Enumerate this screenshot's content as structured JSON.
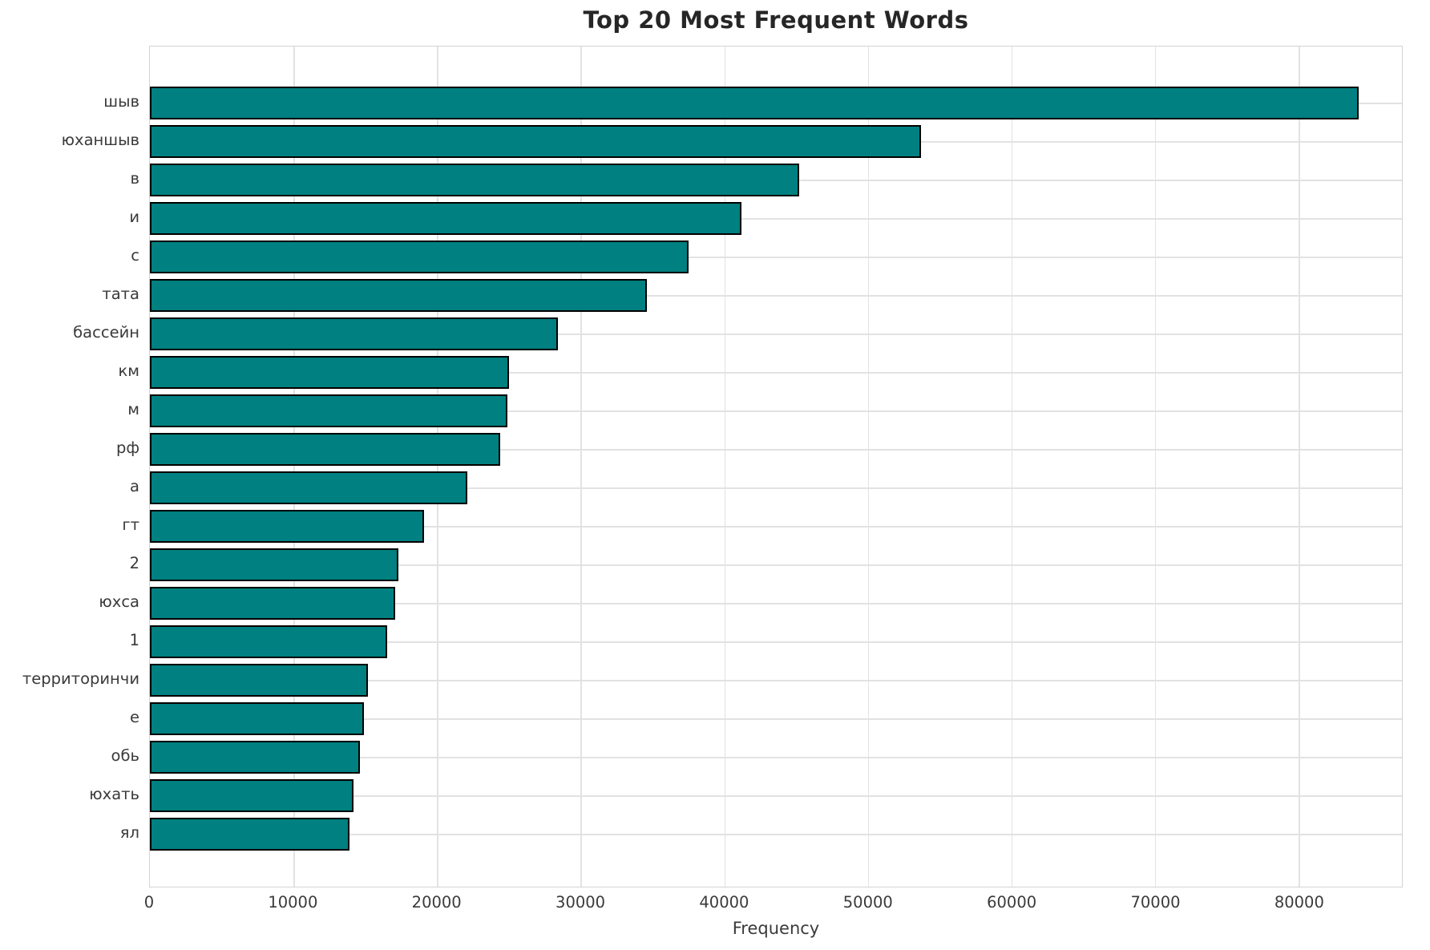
{
  "title": "Top 20 Most Frequent Words",
  "xlabel": "Frequency",
  "colors": {
    "bar_fill": "#008080",
    "bar_edge": "#000000",
    "grid": "#e2e2e2",
    "text": "#3a3a3a",
    "title_text": "#262626"
  },
  "chart_data": {
    "type": "bar",
    "orientation": "horizontal",
    "title": "Top 20 Most Frequent Words",
    "xlabel": "Frequency",
    "ylabel": "",
    "categories": [
      "шыв",
      "юханшыв",
      "в",
      "и",
      "с",
      "тата",
      "бассейн",
      "км",
      "м",
      "рф",
      "а",
      "гт",
      "2",
      "юхса",
      "1",
      "территоринчи",
      "е",
      "обь",
      "юхать",
      "ял"
    ],
    "values": [
      84200,
      53700,
      45200,
      41200,
      37500,
      34600,
      28400,
      25000,
      24900,
      24400,
      22100,
      19100,
      17300,
      17100,
      16500,
      15200,
      14900,
      14600,
      14200,
      13900
    ],
    "xlim": [
      0,
      87200
    ],
    "xticks": [
      0,
      10000,
      20000,
      30000,
      40000,
      50000,
      60000,
      70000,
      80000
    ],
    "grid": "both",
    "legend": "none",
    "bar_color": "#008080",
    "edge_color": "#000000"
  }
}
